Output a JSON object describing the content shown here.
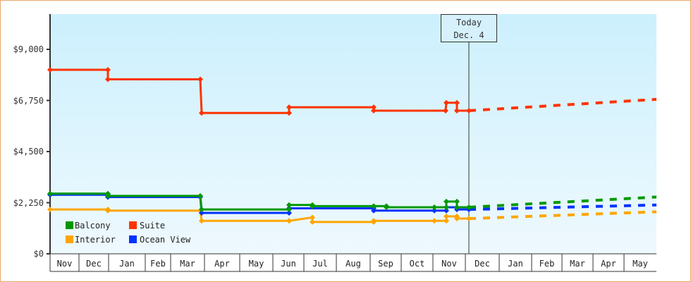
{
  "chart_data": {
    "type": "line",
    "title": "",
    "xlabel": "",
    "ylabel": "",
    "ylim": [
      0,
      10125
    ],
    "y_ticks": [
      "$0",
      "$2,250",
      "$4,500",
      "$6,750",
      "$9,000"
    ],
    "y_tick_values": [
      0,
      2250,
      4500,
      6750,
      9000
    ],
    "x_ticks": [
      "Nov",
      "Dec",
      "Jan",
      "Feb",
      "Mar",
      "Apr",
      "May",
      "Jun",
      "Jul",
      "Aug",
      "Sep",
      "Oct",
      "Nov",
      "Dec",
      "Jan",
      "Feb",
      "Mar",
      "Apr",
      "May"
    ],
    "grid": false,
    "legend_position": "bottom-left inside",
    "annotation": {
      "line1": "Today",
      "line2": "Dec. 4"
    },
    "series": [
      {
        "name": "Balcony",
        "color": "#009900",
        "historical": [
          [
            "Nov",
            2650
          ],
          [
            "Dec",
            2650
          ],
          [
            "Dec",
            2550
          ],
          [
            "Mar",
            2550
          ],
          [
            "Mar",
            1950
          ],
          [
            "Jun",
            1950
          ],
          [
            "Jun",
            2150
          ],
          [
            "Jul",
            2150
          ],
          [
            "Jul",
            2100
          ],
          [
            "Sep",
            2100
          ],
          [
            "Sep",
            2050
          ],
          [
            "Nov",
            2050
          ],
          [
            "Nov",
            2300
          ],
          [
            "Nov",
            2050
          ],
          [
            "Today",
            2050
          ]
        ],
        "projection": [
          [
            "Today",
            2050
          ],
          [
            "May",
            2500
          ]
        ]
      },
      {
        "name": "Suite",
        "color": "#ff3300",
        "historical": [
          [
            "Nov",
            8100
          ],
          [
            "Dec",
            8100
          ],
          [
            "Dec",
            7680
          ],
          [
            "Mar",
            7680
          ],
          [
            "Mar",
            6200
          ],
          [
            "Jun",
            6200
          ],
          [
            "Jun",
            6450
          ],
          [
            "Sep",
            6450
          ],
          [
            "Sep",
            6300
          ],
          [
            "Nov",
            6300
          ],
          [
            "Nov",
            6650
          ],
          [
            "Nov",
            6300
          ],
          [
            "Today",
            6300
          ]
        ],
        "projection": [
          [
            "Today",
            6300
          ],
          [
            "May",
            6800
          ]
        ]
      },
      {
        "name": "Interior",
        "color": "#ffa500",
        "historical": [
          [
            "Nov",
            1950
          ],
          [
            "Dec",
            1950
          ],
          [
            "Dec",
            1900
          ],
          [
            "Mar",
            1900
          ],
          [
            "Mar",
            1450
          ],
          [
            "Jun",
            1450
          ],
          [
            "Jun",
            1600
          ],
          [
            "Jul",
            1600
          ],
          [
            "Jul",
            1400
          ],
          [
            "Sep",
            1400
          ],
          [
            "Sep",
            1450
          ],
          [
            "Nov",
            1450
          ],
          [
            "Nov",
            1650
          ],
          [
            "Nov",
            1550
          ],
          [
            "Today",
            1550
          ]
        ],
        "projection": [
          [
            "Today",
            1550
          ],
          [
            "May",
            1850
          ]
        ]
      },
      {
        "name": "Ocean View",
        "color": "#0033ff",
        "historical": [
          [
            "Nov",
            2600
          ],
          [
            "Dec",
            2600
          ],
          [
            "Dec",
            2500
          ],
          [
            "Mar",
            2500
          ],
          [
            "Mar",
            1800
          ],
          [
            "Jun",
            1800
          ],
          [
            "Jun",
            2000
          ],
          [
            "Sep",
            2000
          ],
          [
            "Sep",
            1900
          ],
          [
            "Nov",
            1900
          ],
          [
            "Nov",
            2050
          ],
          [
            "Nov",
            1950
          ],
          [
            "Today",
            1950
          ]
        ],
        "projection": [
          [
            "Today",
            1950
          ],
          [
            "May",
            2150
          ]
        ]
      }
    ]
  },
  "legend": [
    {
      "label": "Balcony",
      "color": "#009900"
    },
    {
      "label": "Suite",
      "color": "#ff3300"
    },
    {
      "label": "Interior",
      "color": "#ffa500"
    },
    {
      "label": "Ocean View",
      "color": "#0033ff"
    }
  ],
  "today": {
    "line1": "Today",
    "line2": "Dec. 4"
  },
  "yaxis": {
    "t0": "$0",
    "t1": "$2,250",
    "t2": "$4,500",
    "t3": "$6,750",
    "t4": "$9,000"
  },
  "xaxis": [
    "Nov",
    "Dec",
    "Jan",
    "Feb",
    "Mar",
    "Apr",
    "May",
    "Jun",
    "Jul",
    "Aug",
    "Sep",
    "Oct",
    "Nov",
    "Dec",
    "Jan",
    "Feb",
    "Mar",
    "Apr",
    "May"
  ]
}
